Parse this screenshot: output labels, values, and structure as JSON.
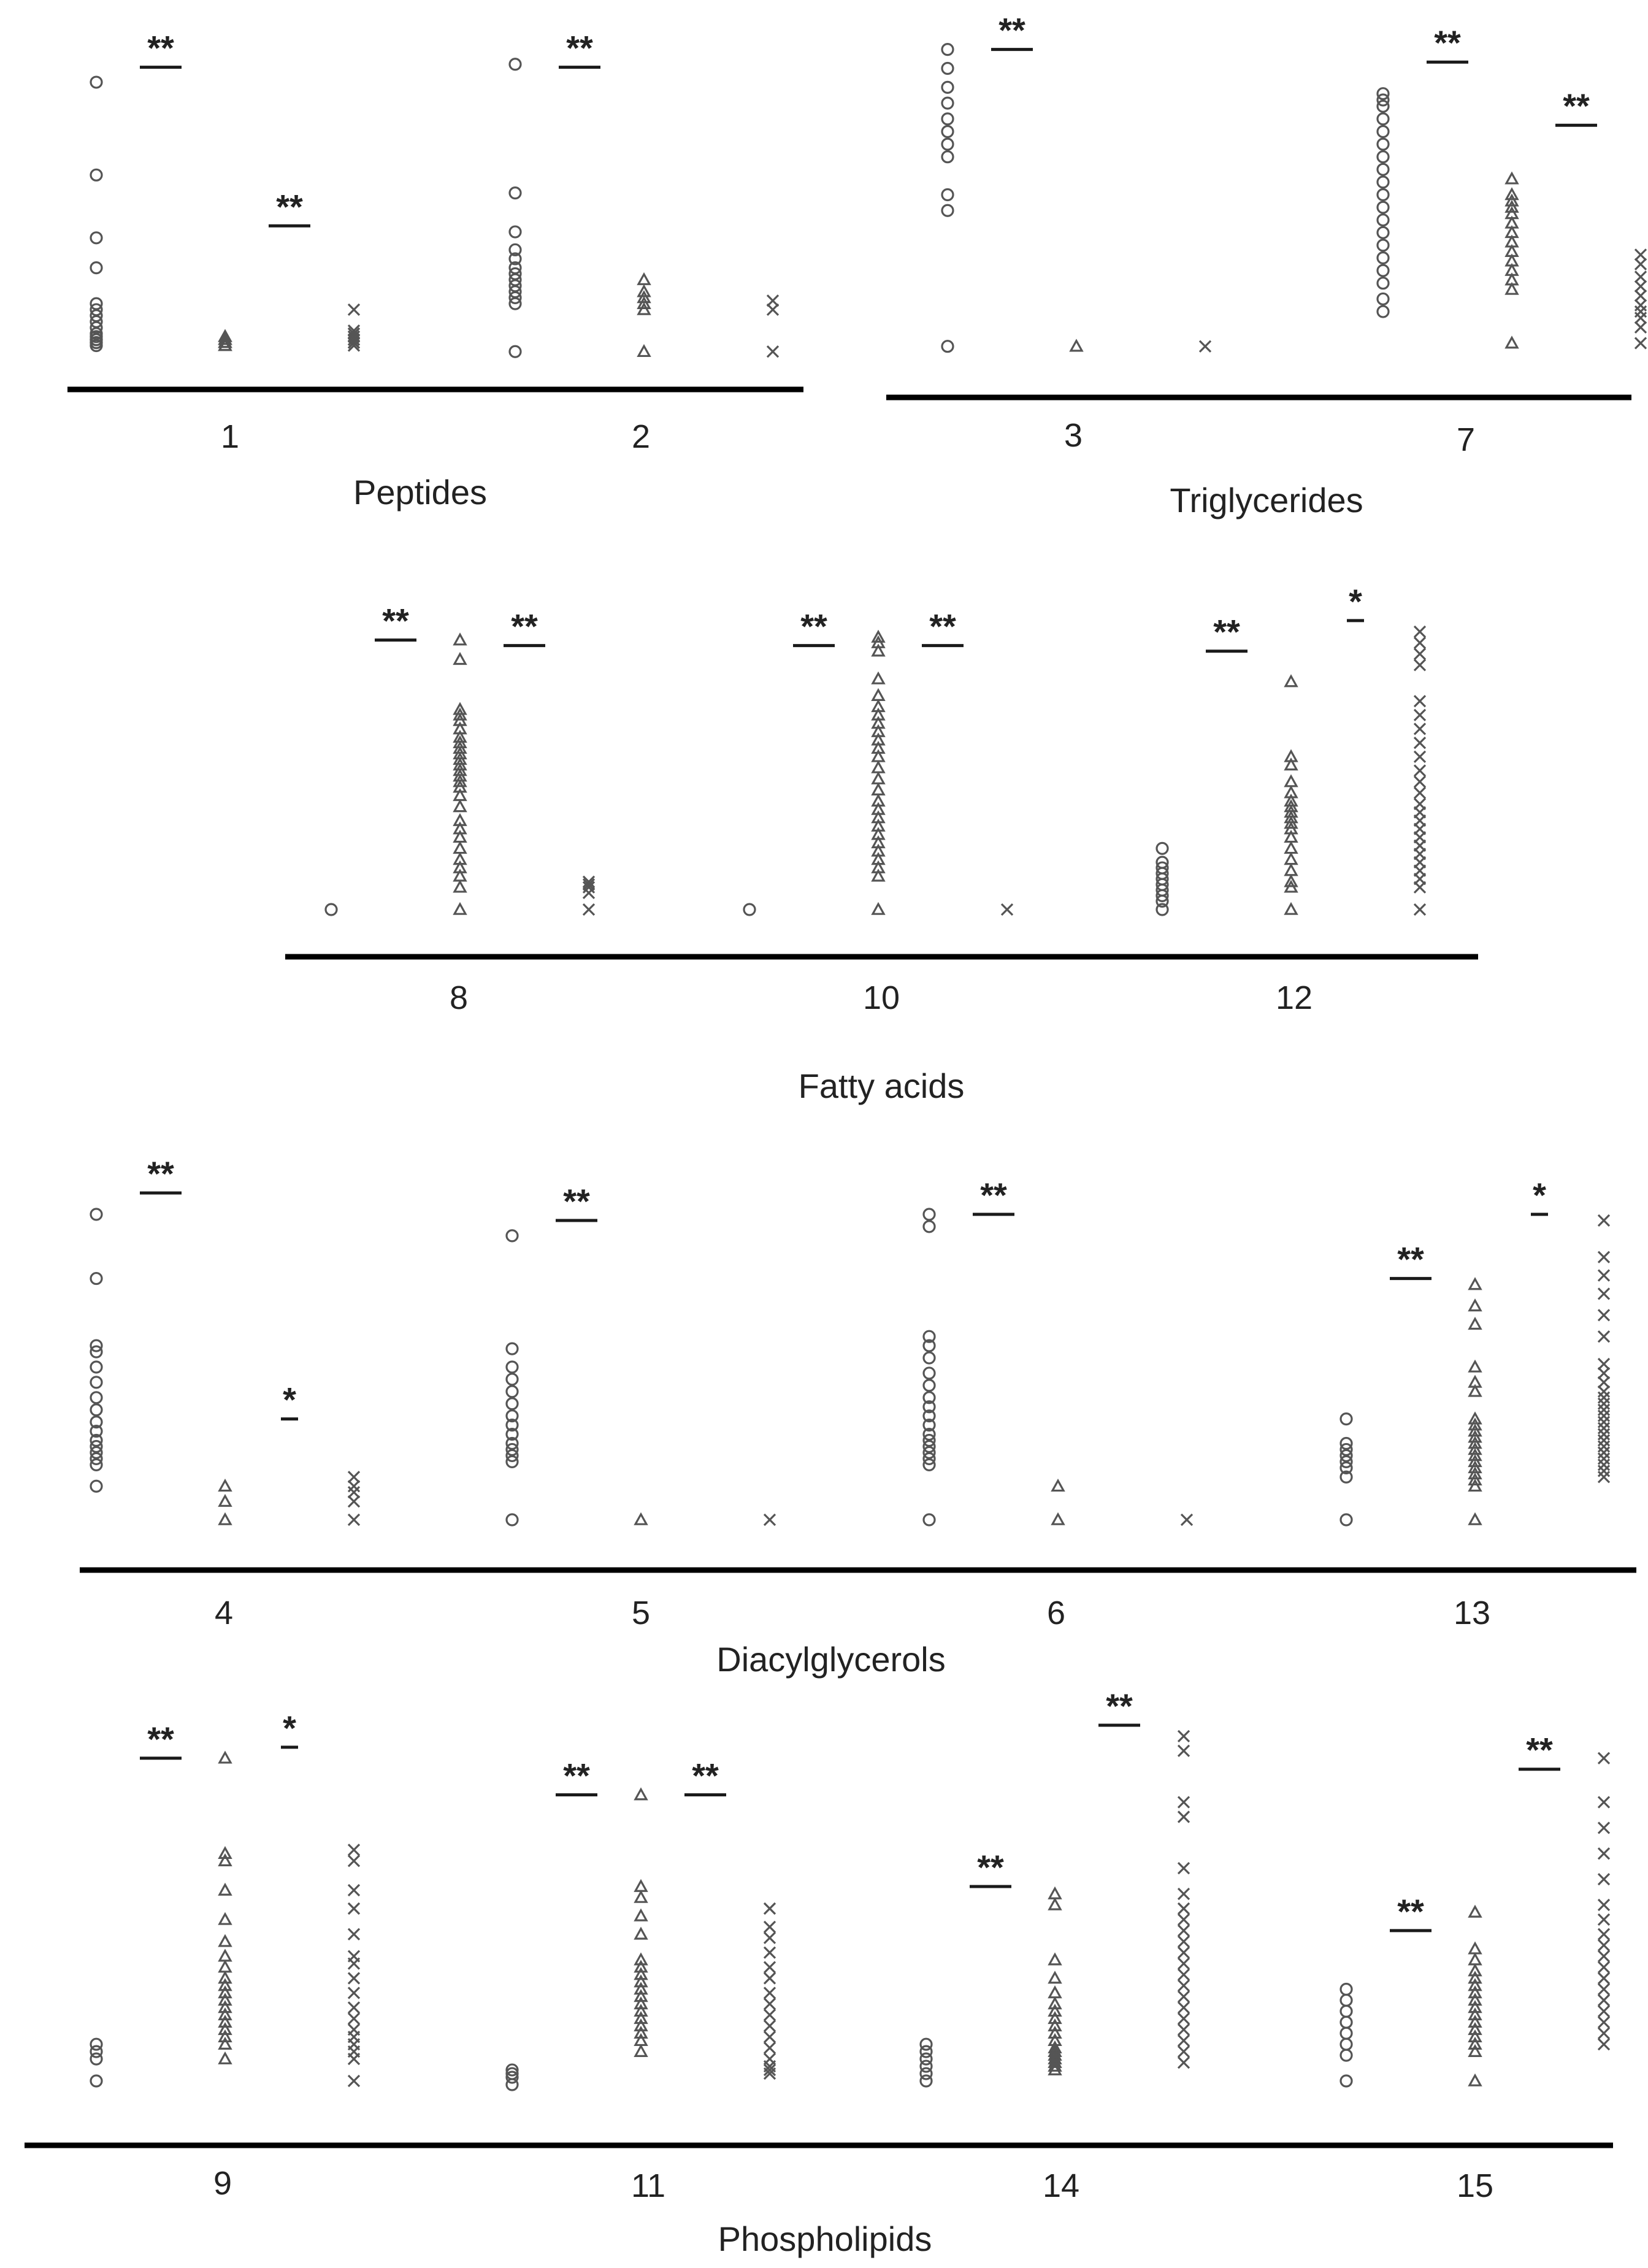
{
  "chart_data": [
    {
      "type": "scatter",
      "title": "Peptides",
      "categories": [
        "1",
        "2"
      ],
      "series_order": [
        "circle",
        "triangle",
        "cross"
      ],
      "ylim": [
        0,
        100
      ],
      "groups": [
        {
          "label": "1",
          "circle": [
            4,
            5,
            5,
            6,
            6,
            6,
            7,
            8,
            10,
            12,
            14,
            16,
            18,
            30,
            40,
            61,
            92
          ],
          "triangle": [
            4,
            4,
            5,
            5,
            5,
            6,
            6,
            6,
            7,
            7
          ],
          "cross": [
            4,
            5,
            5,
            6,
            6,
            7,
            7,
            8,
            8,
            9,
            16
          ],
          "sig": [
            {
              "label": "**",
              "level": 97
            },
            {
              "label": "**",
              "level": 44
            }
          ]
        },
        {
          "label": "2",
          "circle": [
            2,
            18,
            20,
            22,
            24,
            26,
            28,
            30,
            33,
            36,
            42,
            55,
            98
          ],
          "triangle": [
            2,
            16,
            18,
            20,
            22,
            26
          ],
          "cross": [
            2,
            16,
            19
          ],
          "sig": [
            {
              "label": "**",
              "level": 97
            }
          ]
        }
      ]
    },
    {
      "type": "scatter",
      "title": "Triglycerides",
      "categories": [
        "3",
        "7"
      ],
      "series_order": [
        "circle",
        "triangle",
        "cross"
      ],
      "ylim": [
        0,
        100
      ],
      "groups": [
        {
          "label": "3",
          "circle": [
            2,
            45,
            50,
            62,
            66,
            70,
            74,
            79,
            84,
            90,
            96
          ],
          "triangle": [
            2
          ],
          "cross": [
            2
          ],
          "sig": [
            {
              "label": "**",
              "level": 96
            }
          ]
        },
        {
          "label": "7",
          "circle": [
            13,
            17,
            22,
            26,
            30,
            34,
            38,
            42,
            46,
            50,
            54,
            58,
            62,
            66,
            70,
            74,
            78,
            80,
            82
          ],
          "triangle": [
            3,
            20,
            23,
            26,
            29,
            32,
            35,
            38,
            41,
            44,
            46,
            48,
            50,
            55
          ],
          "cross": [
            3,
            8,
            11,
            13,
            15,
            18,
            21,
            24,
            28,
            31
          ],
          "sig": [
            {
              "label": "**",
              "level": 92
            },
            {
              "label": "**",
              "level": 72
            }
          ]
        }
      ]
    },
    {
      "type": "scatter",
      "title": "Fatty acids",
      "categories": [
        "8",
        "10",
        "12"
      ],
      "series_order": [
        "circle",
        "triangle",
        "cross"
      ],
      "ylim": [
        0,
        100
      ],
      "groups": [
        {
          "label": "8",
          "circle": [
            0
          ],
          "triangle": [
            0,
            8,
            12,
            15,
            18,
            22,
            26,
            29,
            32,
            37,
            41,
            44,
            46,
            48,
            50,
            52,
            54,
            56,
            58,
            60,
            62,
            65,
            68,
            70,
            72,
            90,
            97
          ],
          "cross": [
            0,
            6,
            8,
            9,
            10
          ],
          "sig": [
            {
              "label": "**",
              "level": 97
            },
            {
              "label": "**",
              "level": 95
            }
          ]
        },
        {
          "label": "10",
          "circle": [
            0
          ],
          "triangle": [
            0,
            12,
            15,
            18,
            21,
            24,
            27,
            30,
            33,
            36,
            39,
            43,
            47,
            51,
            55,
            58,
            61,
            64,
            67,
            70,
            73,
            77,
            83,
            93,
            96,
            98
          ],
          "cross": [
            0
          ],
          "sig": [
            {
              "label": "**",
              "level": 95
            },
            {
              "label": "**",
              "level": 95
            }
          ]
        },
        {
          "label": "12",
          "circle": [
            0,
            3,
            5,
            7,
            9,
            11,
            13,
            15,
            17,
            22
          ],
          "triangle": [
            0,
            8,
            10,
            14,
            18,
            22,
            26,
            29,
            31,
            33,
            35,
            37,
            39,
            42,
            46,
            52,
            55,
            82
          ],
          "cross": [
            0,
            8,
            11,
            14,
            17,
            20,
            23,
            26,
            29,
            32,
            35,
            38,
            42,
            46,
            50,
            55,
            60,
            65,
            70,
            75,
            88,
            92,
            96,
            100
          ],
          "sig": [
            {
              "label": "**",
              "level": 93
            },
            {
              "label": "*",
              "level": 104
            }
          ]
        }
      ]
    },
    {
      "type": "scatter",
      "title": "Diacylglycerols",
      "categories": [
        "4",
        "5",
        "6",
        "13"
      ],
      "series_order": [
        "circle",
        "triangle",
        "cross"
      ],
      "ylim": [
        0,
        100
      ],
      "groups": [
        {
          "label": "4",
          "circle": [
            11,
            18,
            20,
            22,
            24,
            26,
            29,
            32,
            36,
            40,
            45,
            50,
            55,
            57,
            79,
            100
          ],
          "triangle": [
            0,
            6,
            11
          ],
          "cross": [
            0,
            6,
            9,
            11,
            14
          ],
          "sig": [
            {
              "label": "**",
              "level": 107
            },
            {
              "label": "*",
              "level": 33
            }
          ]
        },
        {
          "label": "5",
          "circle": [
            0,
            19,
            21,
            23,
            25,
            28,
            31,
            34,
            38,
            42,
            46,
            50,
            56,
            93
          ],
          "triangle": [
            0
          ],
          "cross": [
            0
          ],
          "sig": [
            {
              "label": "**",
              "level": 98
            }
          ]
        },
        {
          "label": "6",
          "circle": [
            0,
            18,
            20,
            22,
            24,
            26,
            28,
            31,
            34,
            37,
            40,
            44,
            48,
            53,
            57,
            60,
            96,
            100
          ],
          "triangle": [
            0,
            11
          ],
          "cross": [
            0
          ],
          "sig": [
            {
              "label": "**",
              "level": 100
            }
          ]
        },
        {
          "label": "13",
          "circle": [
            0,
            14,
            17,
            19,
            21,
            23,
            25,
            33
          ],
          "triangle": [
            0,
            11,
            13,
            15,
            17,
            19,
            21,
            23,
            25,
            27,
            29,
            31,
            33,
            42,
            45,
            50,
            64,
            70,
            77
          ],
          "cross": [
            14,
            16,
            18,
            20,
            22,
            24,
            26,
            28,
            30,
            32,
            34,
            36,
            38,
            40,
            42,
            45,
            48,
            51,
            60,
            67,
            74,
            80,
            86,
            98
          ],
          "sig": [
            {
              "label": "**",
              "level": 79
            },
            {
              "label": "*",
              "level": 100
            }
          ]
        }
      ]
    },
    {
      "type": "scatter",
      "title": "Phospholipids",
      "categories": [
        "9",
        "11",
        "14",
        "15"
      ],
      "series_order": [
        "circle",
        "triangle",
        "cross"
      ],
      "ylim": [
        0,
        100
      ],
      "groups": [
        {
          "label": "9",
          "circle": [
            0,
            6,
            8,
            10
          ],
          "triangle": [
            6,
            10,
            12,
            14,
            16,
            18,
            20,
            22,
            24,
            26,
            28,
            31,
            34,
            38,
            44,
            52,
            60,
            62,
            88
          ],
          "cross": [
            0,
            6,
            8,
            10,
            12,
            14,
            17,
            20,
            24,
            28,
            32,
            34,
            40,
            47,
            52,
            60,
            63
          ],
          "sig": [
            {
              "label": "**",
              "level": 88
            },
            {
              "label": "*",
              "level": 91
            }
          ]
        },
        {
          "label": "11",
          "circle": [
            -1,
            1,
            2,
            3
          ],
          "triangle": [
            8,
            11,
            13,
            15,
            17,
            19,
            21,
            23,
            25,
            27,
            29,
            31,
            33,
            40,
            45,
            50,
            53,
            78
          ],
          "cross": [
            2,
            3,
            4,
            6,
            9,
            12,
            15,
            18,
            21,
            24,
            28,
            31,
            35,
            39,
            42,
            47
          ],
          "sig": [
            {
              "label": "**",
              "level": 78
            },
            {
              "label": "**",
              "level": 78
            }
          ]
        },
        {
          "label": "14",
          "circle": [
            0,
            2,
            4,
            6,
            8,
            10
          ],
          "triangle": [
            3,
            4,
            5,
            6,
            7,
            8,
            9,
            11,
            13,
            15,
            17,
            19,
            21,
            24,
            28,
            33,
            48,
            51
          ],
          "cross": [
            5,
            8,
            11,
            14,
            17,
            20,
            23,
            26,
            29,
            32,
            35,
            38,
            41,
            44,
            47,
            51,
            58,
            72,
            76,
            90,
            94
          ],
          "sig": [
            {
              "label": "**",
              "level": 53
            },
            {
              "label": "**",
              "level": 97
            }
          ]
        },
        {
          "label": "15",
          "circle": [
            0,
            7,
            10,
            13,
            16,
            19,
            22,
            25
          ],
          "triangle": [
            0,
            8,
            10,
            12,
            14,
            16,
            18,
            20,
            22,
            24,
            26,
            28,
            30,
            33,
            36,
            46
          ],
          "cross": [
            10,
            13,
            16,
            19,
            22,
            25,
            28,
            31,
            34,
            37,
            40,
            44,
            48,
            55,
            62,
            69,
            76,
            88
          ],
          "sig": [
            {
              "label": "**",
              "level": 41
            },
            {
              "label": "**",
              "level": 85
            }
          ]
        }
      ]
    }
  ]
}
